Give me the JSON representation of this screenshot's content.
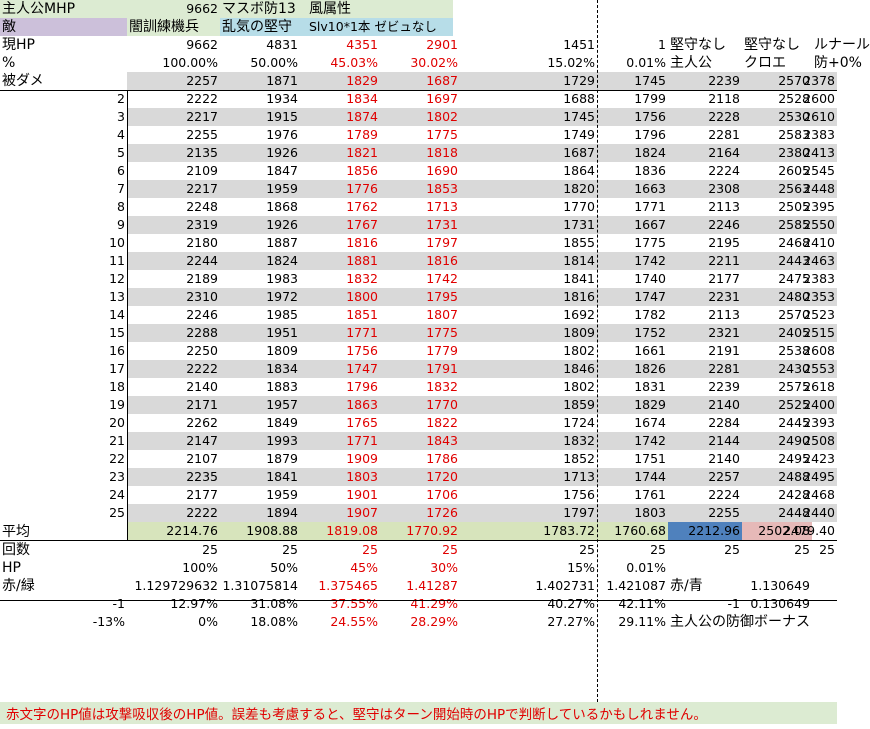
{
  "colors": {
    "header_green": "#dcebd2",
    "header_purple": "#ccc0da",
    "header_blue": "#b7dde8",
    "row_gray": "#d9d9d9",
    "avg_green": "#d7e4bc",
    "avg_blue": "#4f81bd",
    "avg_pink": "#e6b9b8",
    "red_text": "#e00000",
    "note_green": "#dcebd2"
  },
  "header": {
    "r1": [
      "主人公MHP",
      "9662",
      "マスボ防13",
      "風属性"
    ],
    "r2": [
      "敵",
      "闇訓練機兵",
      "乱気の堅守",
      "Slv10*1本 ゼビュなし"
    ]
  },
  "hp_row": [
    "現HP",
    "9662",
    "4831",
    "4351",
    "2901",
    "1451",
    "1",
    "堅守なし",
    "堅守なし",
    "ルナール"
  ],
  "pct_row": [
    "%",
    "100.00%",
    "50.00%",
    "45.03%",
    "30.02%",
    "15.02%",
    "0.01%",
    "主人公",
    "クロエ",
    "防+0%"
  ],
  "damage_label": "被ダメ",
  "damage_rows": [
    [
      "",
      "2257",
      "1871",
      "1829",
      "1687",
      "1729",
      "1745",
      "2239",
      "2570",
      "2378"
    ],
    [
      "2",
      "2222",
      "1934",
      "1834",
      "1697",
      "1688",
      "1799",
      "2118",
      "2528",
      "2600"
    ],
    [
      "3",
      "2217",
      "1915",
      "1874",
      "1802",
      "1745",
      "1756",
      "2228",
      "2530",
      "2610"
    ],
    [
      "4",
      "2255",
      "1976",
      "1789",
      "1775",
      "1749",
      "1796",
      "2281",
      "2583",
      "2383"
    ],
    [
      "5",
      "2135",
      "1926",
      "1821",
      "1818",
      "1687",
      "1824",
      "2164",
      "2380",
      "2413"
    ],
    [
      "6",
      "2109",
      "1847",
      "1856",
      "1690",
      "1864",
      "1836",
      "2224",
      "2605",
      "2545"
    ],
    [
      "7",
      "2217",
      "1959",
      "1776",
      "1853",
      "1820",
      "1663",
      "2308",
      "2563",
      "2448"
    ],
    [
      "8",
      "2248",
      "1868",
      "1762",
      "1713",
      "1770",
      "1771",
      "2113",
      "2505",
      "2395"
    ],
    [
      "9",
      "2319",
      "1926",
      "1767",
      "1731",
      "1731",
      "1667",
      "2246",
      "2585",
      "2550"
    ],
    [
      "10",
      "2180",
      "1887",
      "1816",
      "1797",
      "1855",
      "1775",
      "2195",
      "2468",
      "2410"
    ],
    [
      "11",
      "2244",
      "1824",
      "1881",
      "1816",
      "1814",
      "1742",
      "2211",
      "2443",
      "2463"
    ],
    [
      "12",
      "2189",
      "1983",
      "1832",
      "1742",
      "1841",
      "1740",
      "2177",
      "2475",
      "2383"
    ],
    [
      "13",
      "2310",
      "1972",
      "1800",
      "1795",
      "1816",
      "1747",
      "2231",
      "2480",
      "2353"
    ],
    [
      "14",
      "2246",
      "1985",
      "1851",
      "1807",
      "1692",
      "1782",
      "2113",
      "2570",
      "2523"
    ],
    [
      "15",
      "2288",
      "1951",
      "1771",
      "1775",
      "1809",
      "1752",
      "2321",
      "2405",
      "2515"
    ],
    [
      "16",
      "2250",
      "1809",
      "1756",
      "1779",
      "1802",
      "1661",
      "2191",
      "2538",
      "2608"
    ],
    [
      "17",
      "2222",
      "1834",
      "1747",
      "1791",
      "1846",
      "1826",
      "2281",
      "2430",
      "2553"
    ],
    [
      "18",
      "2140",
      "1883",
      "1796",
      "1832",
      "1802",
      "1831",
      "2239",
      "2575",
      "2618"
    ],
    [
      "19",
      "2171",
      "1957",
      "1863",
      "1770",
      "1859",
      "1829",
      "2140",
      "2525",
      "2400"
    ],
    [
      "20",
      "2262",
      "1849",
      "1765",
      "1822",
      "1724",
      "1674",
      "2284",
      "2445",
      "2393"
    ],
    [
      "21",
      "2147",
      "1993",
      "1771",
      "1843",
      "1832",
      "1742",
      "2144",
      "2490",
      "2508"
    ],
    [
      "22",
      "2107",
      "1879",
      "1909",
      "1786",
      "1852",
      "1751",
      "2140",
      "2495",
      "2423"
    ],
    [
      "23",
      "2235",
      "1841",
      "1803",
      "1720",
      "1713",
      "1744",
      "2257",
      "2488",
      "2495"
    ],
    [
      "24",
      "2177",
      "1959",
      "1901",
      "1706",
      "1756",
      "1761",
      "2224",
      "2428",
      "2468"
    ],
    [
      "25",
      "2222",
      "1894",
      "1907",
      "1726",
      "1797",
      "1803",
      "2255",
      "2448",
      "2440"
    ]
  ],
  "avg_row": [
    "平均",
    "2214.76",
    "1908.88",
    "1819.08",
    "1770.92",
    "1783.72",
    "1760.68",
    "2212.96",
    "2502.08",
    "2479.40"
  ],
  "count_row": [
    "回数",
    "25",
    "25",
    "25",
    "25",
    "25",
    "25",
    "25",
    "25",
    "25"
  ],
  "hp2_row": [
    "HP",
    "100%",
    "50%",
    "45%",
    "30%",
    "15%",
    "0.01%",
    "",
    "",
    ""
  ],
  "ratio_row": [
    "赤/緑",
    "1.129729632",
    "1.31075814",
    "1.375465",
    "1.41287",
    "1.402731",
    "1.421087",
    "赤/青",
    "1.130649",
    ""
  ],
  "minus1_row": [
    "-1",
    "12.97%",
    "31.08%",
    "37.55%",
    "41.29%",
    "40.27%",
    "42.11%",
    "-1",
    "0.130649",
    ""
  ],
  "minus13_row": [
    "-13%",
    "0%",
    "18.08%",
    "24.55%",
    "28.29%",
    "27.27%",
    "29.11%",
    "主人公の防御ボーナス",
    "",
    ""
  ],
  "note": "赤文字のHP値は攻撃吸収後のHP値。誤差も考慮すると、堅守はターン開始時のHPで判断しているかもしれません。"
}
